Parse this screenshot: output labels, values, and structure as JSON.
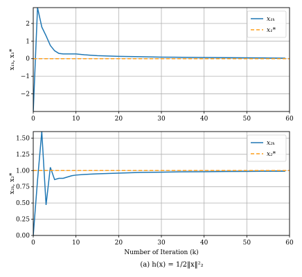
{
  "figure": {
    "caption": "(a) h(x) = 1/2‖x‖²₂"
  },
  "colors": {
    "estimate": "#1f77b4",
    "target": "#ff9f1c",
    "grid": "#b0b0b0"
  },
  "chart_data": [
    {
      "type": "line",
      "title": "",
      "xlabel": "",
      "ylabel": "x₁ₖ, x₁*",
      "xlim": [
        0,
        60
      ],
      "ylim": [
        -3,
        2.9
      ],
      "xticks": [
        0,
        10,
        20,
        30,
        40,
        50,
        60
      ],
      "yticks": [
        -2,
        -1,
        0,
        1,
        2
      ],
      "grid": true,
      "legend_position": "top-right",
      "series": [
        {
          "name": "x₁ₖ",
          "style": "solid",
          "x": [
            0,
            1,
            2,
            3,
            4,
            5,
            6,
            7,
            8,
            9,
            10,
            12,
            15,
            20,
            25,
            30,
            35,
            40,
            45,
            50,
            55,
            59
          ],
          "y": [
            -3.0,
            2.9,
            1.8,
            1.3,
            0.75,
            0.45,
            0.3,
            0.27,
            0.27,
            0.27,
            0.27,
            0.22,
            0.17,
            0.13,
            0.11,
            0.09,
            0.08,
            0.07,
            0.06,
            0.05,
            0.04,
            0.03
          ]
        },
        {
          "name": "x₁*",
          "style": "dashed",
          "x": [
            0,
            60
          ],
          "y": [
            0,
            0
          ]
        }
      ]
    },
    {
      "type": "line",
      "title": "",
      "xlabel": "Number of Iteration (k)",
      "ylabel": "x₂ₖ, x₂*",
      "xlim": [
        0,
        60
      ],
      "ylim": [
        0,
        1.6
      ],
      "xticks": [
        0,
        10,
        20,
        30,
        40,
        50,
        60
      ],
      "yticks": [
        0.0,
        0.25,
        0.5,
        0.75,
        1.0,
        1.25,
        1.5
      ],
      "ytick_labels": [
        "0.00",
        "0.25",
        "0.50",
        "0.75",
        "1.00",
        "1.25",
        "1.50"
      ],
      "grid": true,
      "legend_position": "top-right",
      "series": [
        {
          "name": "x₂ₖ",
          "style": "solid",
          "x": [
            0,
            1,
            2,
            3,
            4,
            5,
            6,
            7,
            8,
            9,
            10,
            12,
            15,
            20,
            25,
            30,
            35,
            40,
            45,
            50,
            55,
            59
          ],
          "y": [
            0.0,
            0.85,
            1.6,
            0.47,
            1.05,
            0.86,
            0.88,
            0.88,
            0.9,
            0.92,
            0.93,
            0.94,
            0.95,
            0.96,
            0.97,
            0.975,
            0.98,
            0.982,
            0.985,
            0.987,
            0.989,
            0.99
          ]
        },
        {
          "name": "x₂*",
          "style": "dashed",
          "x": [
            0,
            60
          ],
          "y": [
            1,
            1
          ]
        }
      ]
    }
  ]
}
